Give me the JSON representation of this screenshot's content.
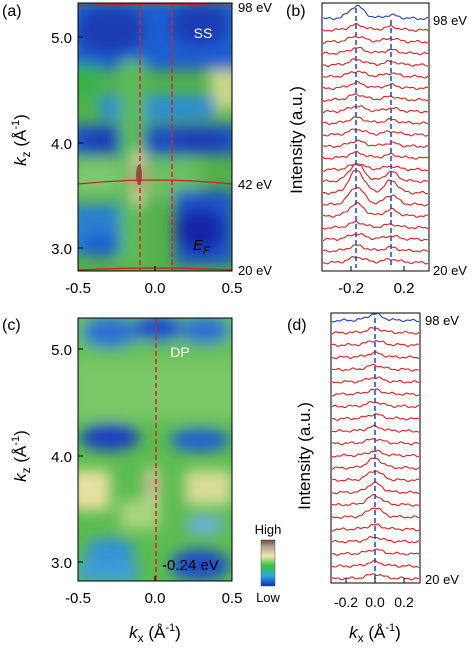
{
  "panel_a": {
    "label": "(a)",
    "ylabel_main": "k",
    "ylabel_sub": "z",
    "ylabel_unit": " (Å",
    "ylabel_exp": "-1",
    "ylabel_close": ")",
    "top_energy": "98 eV",
    "mid_energy": "42 eV",
    "bottom_energy": "20 eV",
    "inset_label": "SS",
    "ef_main": "E",
    "ef_sub": "F"
  },
  "panel_b": {
    "label": "(b)",
    "ylabel": "Intensity (a.u.)",
    "top_energy": "98 eV",
    "bottom_energy": "20 eV"
  },
  "panel_c": {
    "label": "(c)",
    "ylabel_main": "k",
    "ylabel_sub": "z",
    "ylabel_unit": " (Å",
    "ylabel_exp": "-1",
    "ylabel_close": ")",
    "inset_label": "DP",
    "energy_label": "-0.24 eV",
    "xlabel_main": "k",
    "xlabel_sub": "x",
    "xlabel_unit": " (Å",
    "xlabel_exp": "-1",
    "xlabel_close": ")",
    "colorbar_high": "High",
    "colorbar_low": "Low"
  },
  "panel_d": {
    "label": "(d)",
    "ylabel": "Intensity (a.u.)",
    "top_energy": "98 eV",
    "bottom_energy": "20 eV",
    "xlabel_main": "k",
    "xlabel_sub": "x",
    "xlabel_unit": " (Å",
    "xlabel_exp": "-1",
    "xlabel_close": ")"
  },
  "chart_data": [
    {
      "type": "heatmap",
      "panel": "a",
      "xlabel": "kx (Å-1)",
      "ylabel": "kz (Å-1)",
      "xlim": [
        -0.5,
        0.5
      ],
      "ylim": [
        2.78,
        5.3
      ],
      "x_ticks": [
        "-0.5",
        "0.0",
        "0.5"
      ],
      "y_ticks": [
        "3.0",
        "4.0",
        "5.0"
      ],
      "guides_kx": [
        -0.11,
        0.11
      ],
      "photon_energy_levels": [
        {
          "label": "98 eV",
          "kz": 5.28
        },
        {
          "label": "42 eV",
          "kz": 3.65
        },
        {
          "label": "20 eV",
          "kz": 2.8
        }
      ],
      "annotations": [
        "SS",
        "EF"
      ]
    },
    {
      "type": "line",
      "panel": "b",
      "ylabel": "Intensity (a.u.)",
      "xlim": [
        -0.3,
        0.3
      ],
      "x_ticks": [
        "-0.2",
        "0.2"
      ],
      "guides_kx": [
        -0.13,
        0.13
      ],
      "curves": 22,
      "energy_range": [
        "20 eV",
        "98 eV"
      ]
    },
    {
      "type": "heatmap",
      "panel": "c",
      "xlabel": "kx (Å-1)",
      "ylabel": "kz (Å-1)",
      "xlim": [
        -0.5,
        0.5
      ],
      "ylim": [
        2.78,
        5.3
      ],
      "x_ticks": [
        "-0.5",
        "0.0",
        "0.5"
      ],
      "y_ticks": [
        "3.0",
        "4.0",
        "5.0"
      ],
      "guides_kx": [
        0.0
      ],
      "annotations": [
        "DP",
        "-0.24 eV"
      ],
      "colorbar": [
        "High",
        "Low"
      ]
    },
    {
      "type": "line",
      "panel": "d",
      "ylabel": "Intensity (a.u.)",
      "xlabel": "kx (Å-1)",
      "xlim": [
        -0.3,
        0.3
      ],
      "x_ticks": [
        "-0.2",
        "0.0",
        "0.2"
      ],
      "guides_kx": [
        0.0
      ],
      "curves": 22,
      "energy_range": [
        "20 eV",
        "98 eV"
      ]
    }
  ]
}
